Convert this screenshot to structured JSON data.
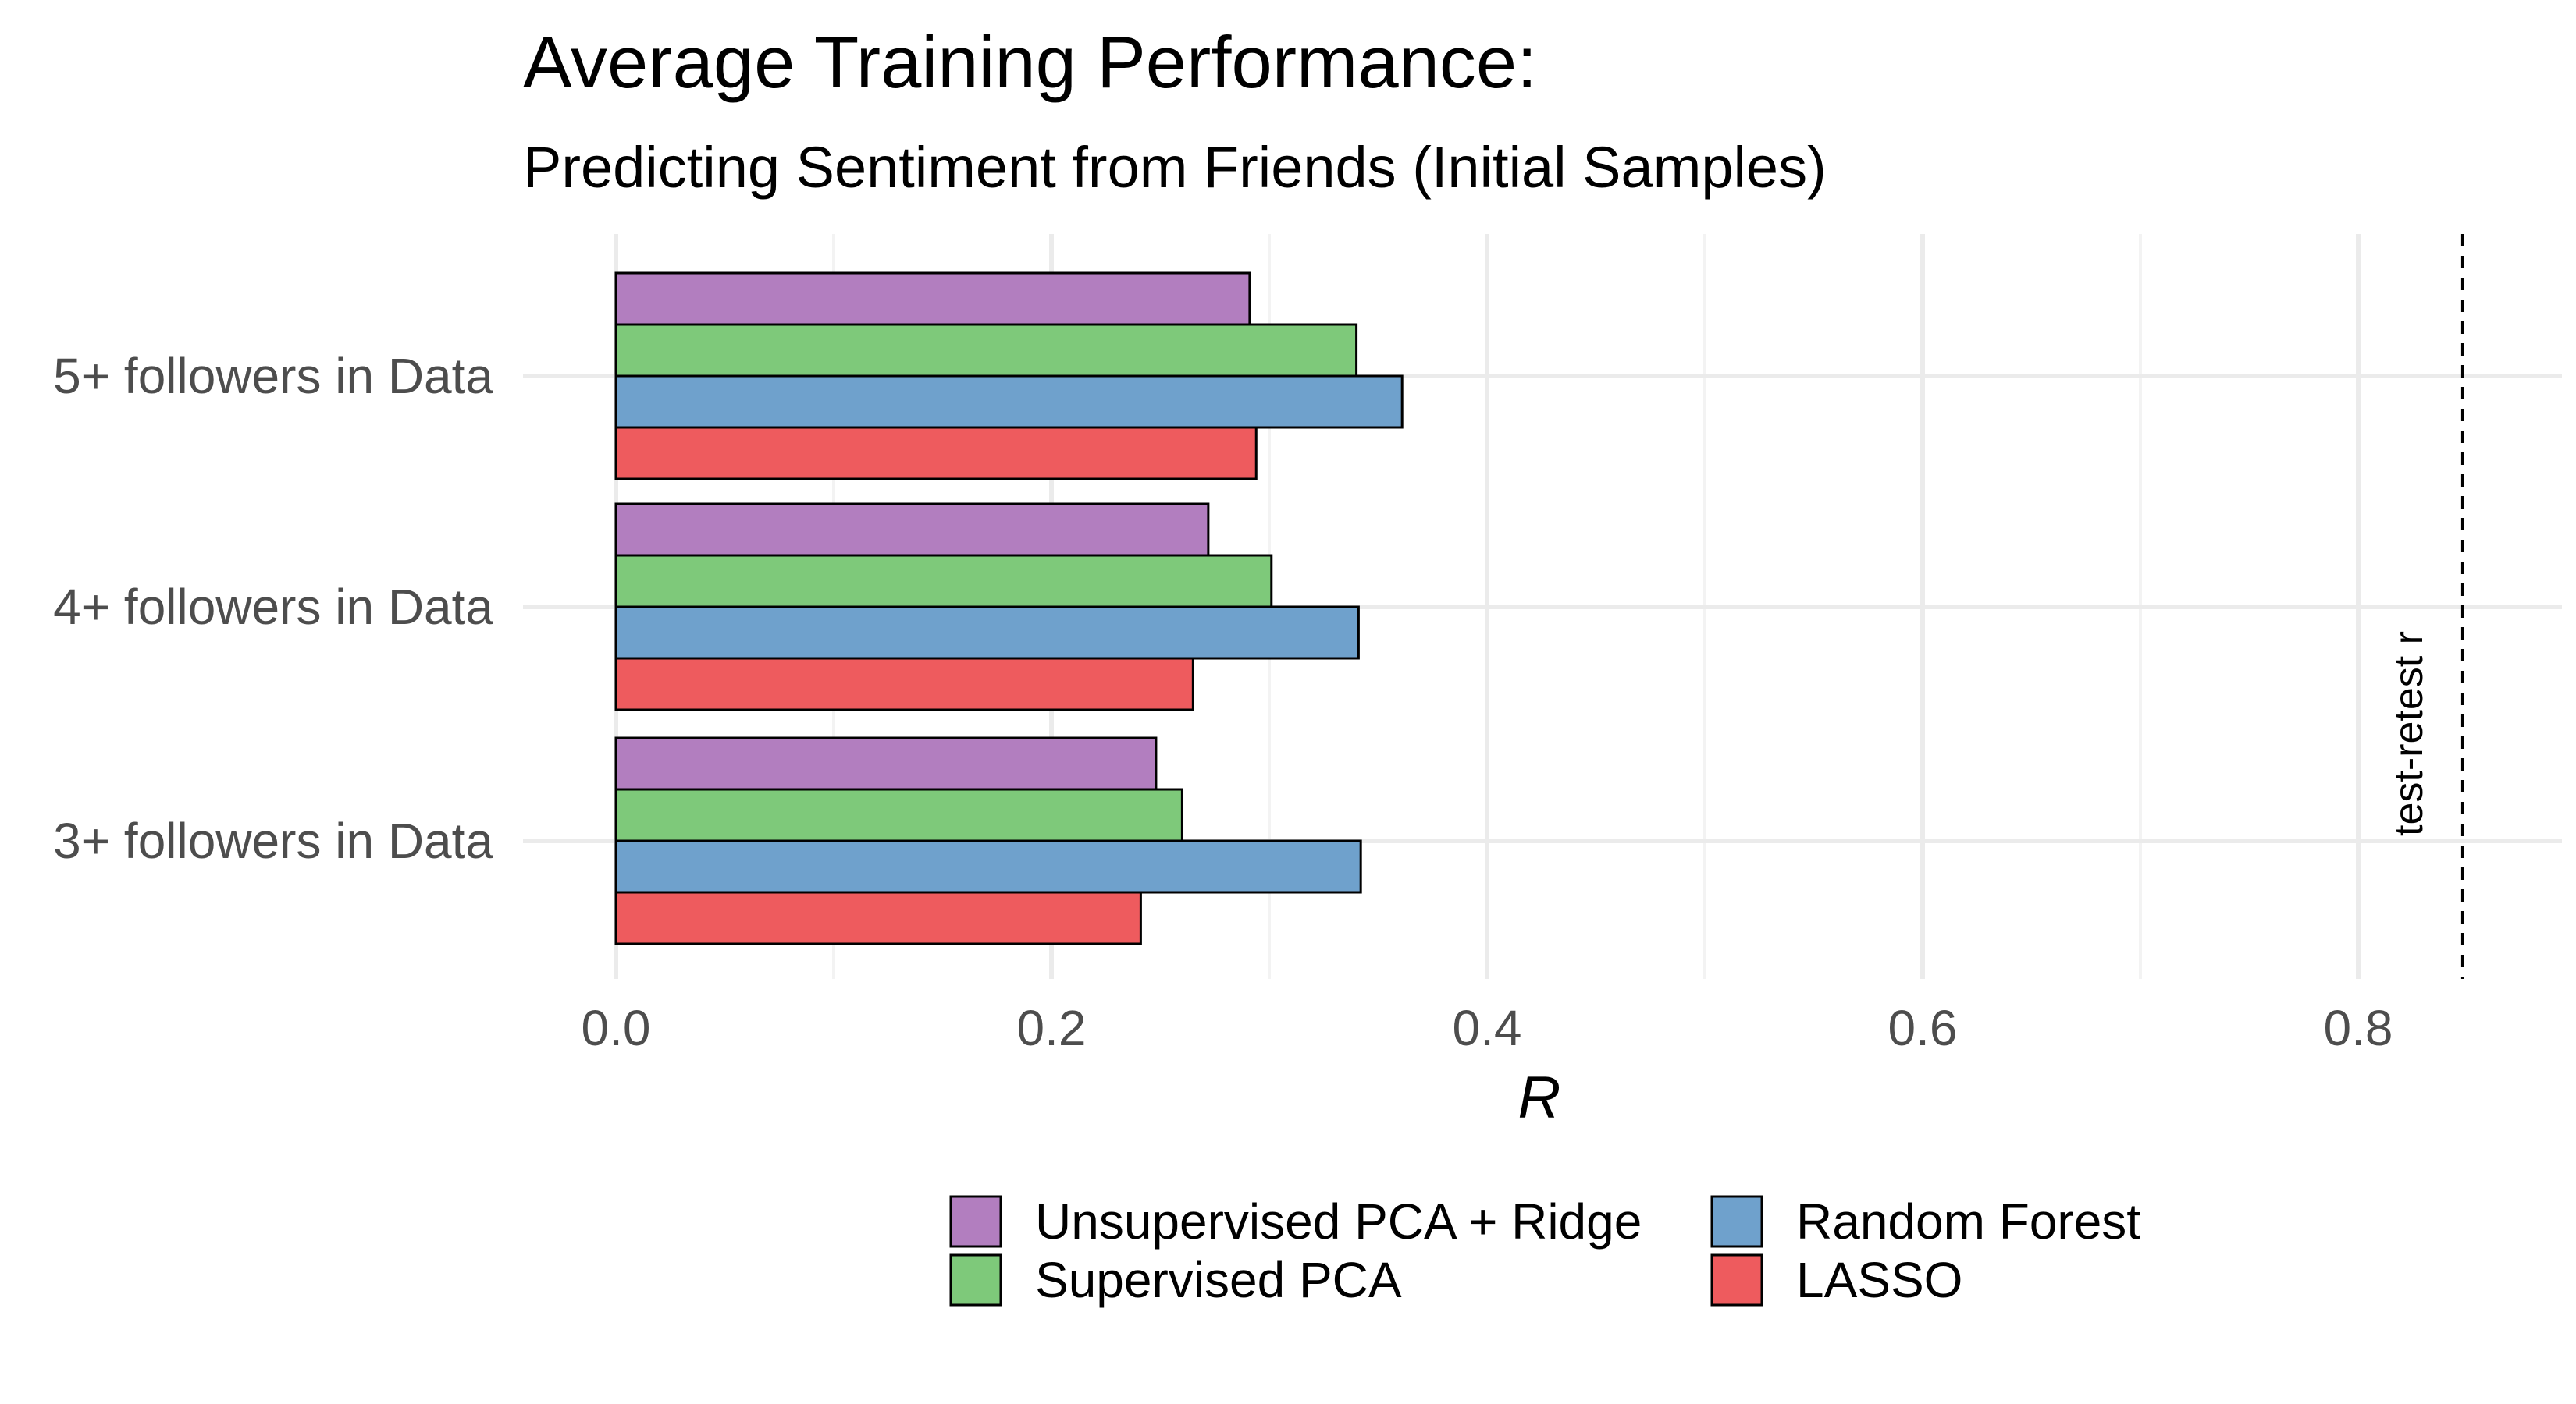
{
  "chart_data": {
    "type": "bar",
    "orientation": "horizontal",
    "title": "Average Training Performance:",
    "subtitle": "Predicting Sentiment from Friends (Initial Samples)",
    "xlabel": "R",
    "ylabel": "",
    "xlim": [
      -0.025,
      0.88
    ],
    "x_ticks": [
      0.0,
      0.2,
      0.4,
      0.6,
      0.8
    ],
    "x_tick_labels": [
      "0.0",
      "0.2",
      "0.4",
      "0.6",
      "0.8"
    ],
    "categories": [
      "5+ followers in Data",
      "4+ followers in Data",
      "3+ followers in Data"
    ],
    "series": [
      {
        "name": "Unsupervised PCA + Ridge",
        "color": "#b27ebf",
        "values": [
          0.291,
          0.272,
          0.248
        ]
      },
      {
        "name": "Supervised PCA",
        "color": "#7ec97a",
        "values": [
          0.34,
          0.301,
          0.26
        ]
      },
      {
        "name": "Random Forest",
        "color": "#6fa1cc",
        "values": [
          0.361,
          0.341,
          0.342
        ]
      },
      {
        "name": "LASSO",
        "color": "#ee5b5e",
        "values": [
          0.294,
          0.265,
          0.241
        ]
      }
    ],
    "reference_line": {
      "value": 0.848,
      "label": "test-retest r",
      "style": "dashed"
    },
    "grid": true,
    "legend_position": "bottom"
  }
}
